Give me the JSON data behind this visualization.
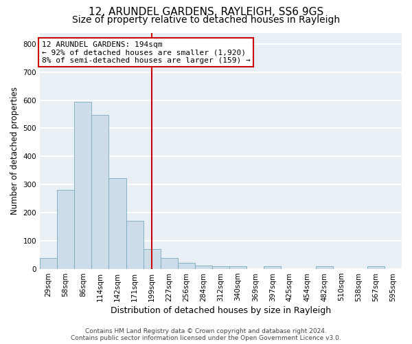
{
  "title": "12, ARUNDEL GARDENS, RAYLEIGH, SS6 9GS",
  "subtitle": "Size of property relative to detached houses in Rayleigh",
  "xlabel": "Distribution of detached houses by size in Rayleigh",
  "ylabel": "Number of detached properties",
  "bins": [
    "29sqm",
    "58sqm",
    "86sqm",
    "114sqm",
    "142sqm",
    "171sqm",
    "199sqm",
    "227sqm",
    "256sqm",
    "284sqm",
    "312sqm",
    "340sqm",
    "369sqm",
    "397sqm",
    "425sqm",
    "454sqm",
    "482sqm",
    "510sqm",
    "538sqm",
    "567sqm",
    "595sqm"
  ],
  "values": [
    38,
    280,
    595,
    548,
    322,
    170,
    70,
    38,
    20,
    10,
    8,
    8,
    0,
    8,
    0,
    0,
    8,
    0,
    0,
    8,
    0
  ],
  "bar_color": "#ccdce8",
  "bar_edge_color": "#7aaabf",
  "vline_index": 6,
  "vline_color": "#cc0000",
  "annotation_line1": "12 ARUNDEL GARDENS: 194sqm",
  "annotation_line2": "← 92% of detached houses are smaller (1,920)",
  "annotation_line3": "8% of semi-detached houses are larger (159) →",
  "annotation_box_edgecolor": "#cc0000",
  "ylim": [
    0,
    840
  ],
  "yticks": [
    0,
    100,
    200,
    300,
    400,
    500,
    600,
    700,
    800
  ],
  "plot_bgcolor": "#e8eff5",
  "grid_color": "#ffffff",
  "footer_text": "Contains HM Land Registry data © Crown copyright and database right 2024.\nContains public sector information licensed under the Open Government Licence v3.0.",
  "title_fontsize": 11,
  "subtitle_fontsize": 10,
  "xlabel_fontsize": 9,
  "ylabel_fontsize": 8.5,
  "tick_fontsize": 7.5,
  "annotation_fontsize": 8,
  "footer_fontsize": 6.5
}
